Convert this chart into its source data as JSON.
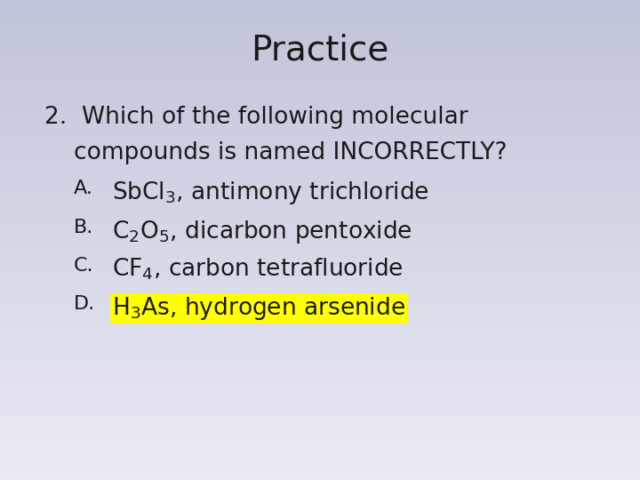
{
  "title": "Practice",
  "title_fontsize": 28,
  "bg_color_top": "#c0c4d8",
  "bg_color_bottom": "#e8e8f0",
  "text_color": "#1a1a1a",
  "question_fontsize": 19,
  "options": [
    {
      "label": "A.",
      "formula": "SbCl$_3$",
      "text": ", antimony trichloride",
      "highlight": false
    },
    {
      "label": "B.",
      "formula": "C$_2$O$_5$",
      "text": ", dicarbon pentoxide",
      "highlight": false
    },
    {
      "label": "C.",
      "formula": "CF$_4$",
      "text": ", carbon tetrafluoride",
      "highlight": false
    },
    {
      "label": "D.",
      "formula": "H$_3$As",
      "text": ", hydrogen arsenide",
      "highlight": true
    }
  ],
  "option_fontsize": 19,
  "highlight_color": "#ffff00",
  "font": "Comic Sans MS",
  "fig_width": 7.2,
  "fig_height": 5.4,
  "dpi": 100
}
